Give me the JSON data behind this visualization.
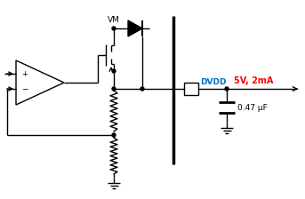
{
  "bg_color": "#ffffff",
  "line_color": "#000000",
  "dvdd_color": "#0070c0",
  "output_color": "#ff0000",
  "vm_label": "VM",
  "dvdd_label": "DVDD",
  "output_label": "5V, 2mA",
  "cap_label": "0.47 μF",
  "figsize": [
    3.43,
    2.24
  ],
  "dpi": 100
}
